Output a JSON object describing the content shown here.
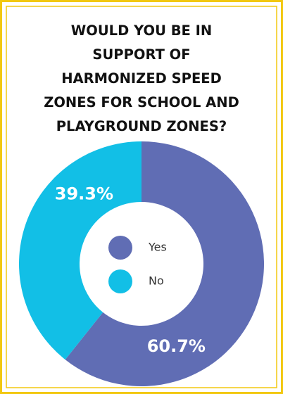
{
  "chart_data": {
    "type": "donut",
    "title": "WOULD YOU BE IN\nSUPPORT OF\nHARMONIZED SPEED\nZONES FOR SCHOOL AND\nPLAYGROUND ZONES?",
    "categories": [
      "Yes",
      "No"
    ],
    "values": [
      60.7,
      39.3
    ],
    "value_labels": [
      "60.7%",
      "39.3%"
    ],
    "colors": [
      "#606db4",
      "#12bfe6"
    ],
    "legend": "center"
  }
}
